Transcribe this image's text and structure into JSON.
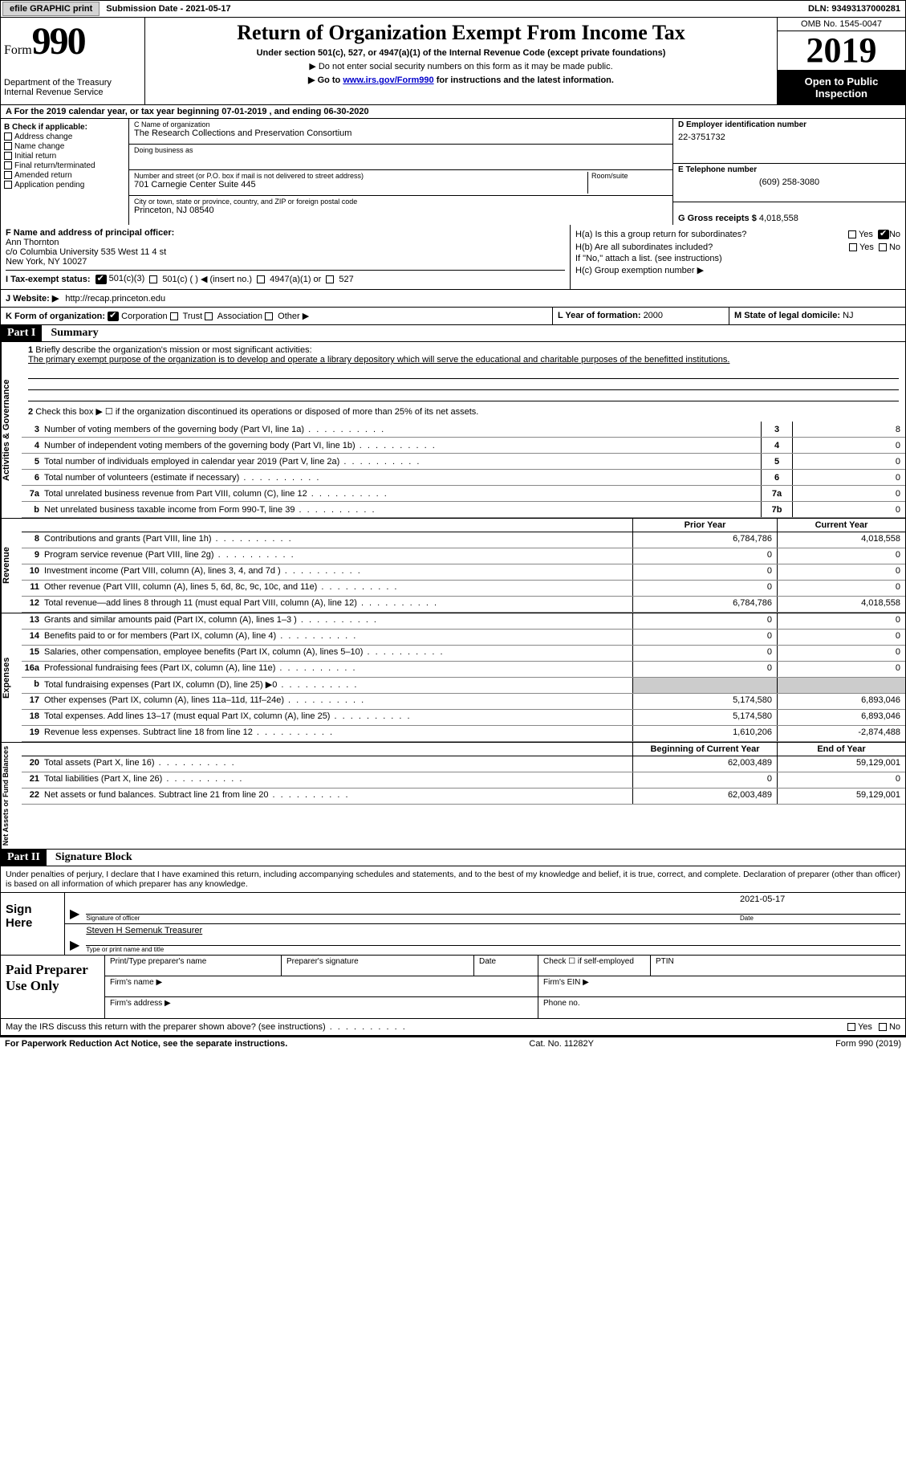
{
  "topbar": {
    "efile_btn": "efile GRAPHIC print",
    "submission_label": "Submission Date - ",
    "submission_date": "2021-05-17",
    "dln_label": "DLN: ",
    "dln": "93493137000281"
  },
  "header": {
    "form_label": "Form",
    "form_number": "990",
    "dept": "Department of the Treasury\nInternal Revenue Service",
    "title": "Return of Organization Exempt From Income Tax",
    "sub1": "Under section 501(c), 527, or 4947(a)(1) of the Internal Revenue Code (except private foundations)",
    "sub2": "▶ Do not enter social security numbers on this form as it may be made public.",
    "sub3_prefix": "▶ Go to ",
    "sub3_link": "www.irs.gov/Form990",
    "sub3_suffix": " for instructions and the latest information.",
    "omb": "OMB No. 1545-0047",
    "year": "2019",
    "open": "Open to Public Inspection"
  },
  "row_a": {
    "text_prefix": "A For the 2019 calendar year, or tax year beginning ",
    "begin": "07-01-2019",
    "mid": "   , and ending ",
    "end": "06-30-2020"
  },
  "section_b": {
    "header": "B Check if applicable:",
    "items": [
      "Address change",
      "Name change",
      "Initial return",
      "Final return/terminated",
      "Amended return",
      "Application pending"
    ]
  },
  "section_c": {
    "name_label": "C Name of organization",
    "name": "The Research Collections and Preservation Consortium",
    "dba_label": "Doing business as",
    "dba": "",
    "addr_label": "Number and street (or P.O. box if mail is not delivered to street address)",
    "room_label": "Room/suite",
    "addr": "701 Carnegie Center Suite 445",
    "city_label": "City or town, state or province, country, and ZIP or foreign postal code",
    "city": "Princeton, NJ  08540"
  },
  "section_d": {
    "ein_label": "D Employer identification number",
    "ein": "22-3751732",
    "phone_label": "E Telephone number",
    "phone": "(609) 258-3080",
    "gross_label": "G Gross receipts $ ",
    "gross": "4,018,558"
  },
  "section_f": {
    "label": "F  Name and address of principal officer:",
    "name": "Ann Thornton",
    "line2": "c/o Columbia University 535 West 11 4 st",
    "line3": "New York, NY  10027"
  },
  "section_h": {
    "a_label": "H(a)  Is this a group return for subordinates?",
    "b_label": "H(b)  Are all subordinates included?",
    "note": "If \"No,\" attach a list. (see instructions)",
    "c_label": "H(c)  Group exemption number ▶",
    "yes": "Yes",
    "no": "No"
  },
  "section_i": {
    "label": "I   Tax-exempt status:",
    "opts": [
      "501(c)(3)",
      "501(c) (  ) ◀ (insert no.)",
      "4947(a)(1) or",
      "527"
    ]
  },
  "section_j": {
    "label": "J   Website: ▶",
    "url": "http://recap.princeton.edu"
  },
  "section_k": {
    "label": "K Form of organization:",
    "opts": [
      "Corporation",
      "Trust",
      "Association",
      "Other ▶"
    ]
  },
  "section_l": {
    "label": "L Year of formation: ",
    "val": "2000"
  },
  "section_m": {
    "label": "M State of legal domicile: ",
    "val": "NJ"
  },
  "parts": {
    "p1_label": "Part I",
    "p1_title": "Summary",
    "p2_label": "Part II",
    "p2_title": "Signature Block"
  },
  "vtabs": {
    "gov": "Activities & Governance",
    "rev": "Revenue",
    "exp": "Expenses",
    "net": "Net Assets or Fund Balances"
  },
  "summary": {
    "line1_label": "Briefly describe the organization's mission or most significant activities:",
    "line1_text": "The primary exempt purpose of the organization is to develop and operate a library depository which will serve the educational and charitable purposes of the benefitted institutions.",
    "line2": "Check this box ▶ ☐  if the organization discontinued its operations or disposed of more than 25% of its net assets.",
    "rows_gov": [
      {
        "n": "3",
        "t": "Number of voting members of the governing body (Part VI, line 1a)",
        "box": "3",
        "v": "8"
      },
      {
        "n": "4",
        "t": "Number of independent voting members of the governing body (Part VI, line 1b)",
        "box": "4",
        "v": "0"
      },
      {
        "n": "5",
        "t": "Total number of individuals employed in calendar year 2019 (Part V, line 2a)",
        "box": "5",
        "v": "0"
      },
      {
        "n": "6",
        "t": "Total number of volunteers (estimate if necessary)",
        "box": "6",
        "v": "0"
      },
      {
        "n": "7a",
        "t": "Total unrelated business revenue from Part VIII, column (C), line 12",
        "box": "7a",
        "v": "0"
      },
      {
        "n": "b",
        "t": "Net unrelated business taxable income from Form 990-T, line 39",
        "box": "7b",
        "v": "0"
      }
    ],
    "prior_year": "Prior Year",
    "current_year": "Current Year",
    "rows_rev": [
      {
        "n": "8",
        "t": "Contributions and grants (Part VIII, line 1h)",
        "py": "6,784,786",
        "cy": "4,018,558"
      },
      {
        "n": "9",
        "t": "Program service revenue (Part VIII, line 2g)",
        "py": "0",
        "cy": "0"
      },
      {
        "n": "10",
        "t": "Investment income (Part VIII, column (A), lines 3, 4, and 7d )",
        "py": "0",
        "cy": "0"
      },
      {
        "n": "11",
        "t": "Other revenue (Part VIII, column (A), lines 5, 6d, 8c, 9c, 10c, and 11e)",
        "py": "0",
        "cy": "0"
      },
      {
        "n": "12",
        "t": "Total revenue—add lines 8 through 11 (must equal Part VIII, column (A), line 12)",
        "py": "6,784,786",
        "cy": "4,018,558"
      }
    ],
    "rows_exp": [
      {
        "n": "13",
        "t": "Grants and similar amounts paid (Part IX, column (A), lines 1–3 )",
        "py": "0",
        "cy": "0"
      },
      {
        "n": "14",
        "t": "Benefits paid to or for members (Part IX, column (A), line 4)",
        "py": "0",
        "cy": "0"
      },
      {
        "n": "15",
        "t": "Salaries, other compensation, employee benefits (Part IX, column (A), lines 5–10)",
        "py": "0",
        "cy": "0"
      },
      {
        "n": "16a",
        "t": "Professional fundraising fees (Part IX, column (A), line 11e)",
        "py": "0",
        "cy": "0"
      },
      {
        "n": "b",
        "t": "Total fundraising expenses (Part IX, column (D), line 25) ▶0",
        "py": "",
        "cy": "",
        "shade": true
      },
      {
        "n": "17",
        "t": "Other expenses (Part IX, column (A), lines 11a–11d, 11f–24e)",
        "py": "5,174,580",
        "cy": "6,893,046"
      },
      {
        "n": "18",
        "t": "Total expenses. Add lines 13–17 (must equal Part IX, column (A), line 25)",
        "py": "5,174,580",
        "cy": "6,893,046"
      },
      {
        "n": "19",
        "t": "Revenue less expenses. Subtract line 18 from line 12",
        "py": "1,610,206",
        "cy": "-2,874,488"
      }
    ],
    "begin_year": "Beginning of Current Year",
    "end_year": "End of Year",
    "rows_net": [
      {
        "n": "20",
        "t": "Total assets (Part X, line 16)",
        "py": "62,003,489",
        "cy": "59,129,001"
      },
      {
        "n": "21",
        "t": "Total liabilities (Part X, line 26)",
        "py": "0",
        "cy": "0"
      },
      {
        "n": "22",
        "t": "Net assets or fund balances. Subtract line 21 from line 20",
        "py": "62,003,489",
        "cy": "59,129,001"
      }
    ]
  },
  "signature": {
    "perjury": "Under penalties of perjury, I declare that I have examined this return, including accompanying schedules and statements, and to the best of my knowledge and belief, it is true, correct, and complete. Declaration of preparer (other than officer) is based on all information of which preparer has any knowledge.",
    "sign_here": "Sign Here",
    "sig_officer_lbl": "Signature of officer",
    "date_lbl": "Date",
    "date_val": "2021-05-17",
    "name_val": "Steven H Semenuk  Treasurer",
    "name_lbl": "Type or print name and title"
  },
  "preparer": {
    "title": "Paid Preparer Use Only",
    "headers": [
      "Print/Type preparer's name",
      "Preparer's signature",
      "Date",
      "Check ☐ if self-employed",
      "PTIN"
    ],
    "firm_name": "Firm's name   ▶",
    "firm_ein": "Firm's EIN ▶",
    "firm_addr": "Firm's address ▶",
    "phone": "Phone no."
  },
  "footer": {
    "irs_q": "May the IRS discuss this return with the preparer shown above? (see instructions)",
    "yes": "Yes",
    "no": "No",
    "paperwork": "For Paperwork Reduction Act Notice, see the separate instructions.",
    "cat": "Cat. No. 11282Y",
    "form": "Form 990 (2019)"
  }
}
